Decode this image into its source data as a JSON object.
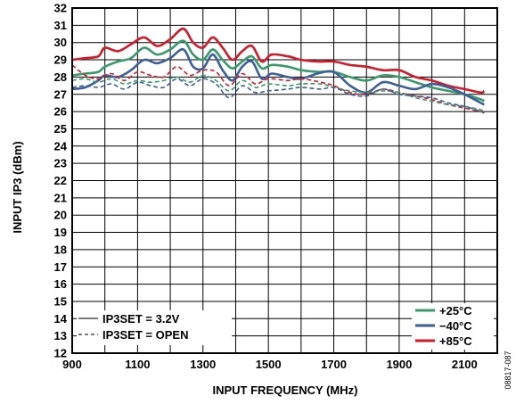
{
  "chart_data": {
    "type": "line",
    "xlabel": "INPUT FREQUENCY (MHz)",
    "ylabel": "INPUT IP3 (dBm)",
    "xlim": [
      900,
      2200
    ],
    "ylim": [
      12,
      32
    ],
    "x_ticks": [
      "900",
      "1100",
      "1300",
      "1500",
      "1700",
      "1900",
      "2100"
    ],
    "y_ticks": [
      "12",
      "13",
      "14",
      "15",
      "16",
      "17",
      "18",
      "19",
      "20",
      "21",
      "22",
      "23",
      "24",
      "25",
      "26",
      "27",
      "28",
      "29",
      "30",
      "31",
      "32"
    ],
    "grid": true,
    "colors": {
      "+25°C": "#3a9a6b",
      "−40°C": "#3d5f9a",
      "+85°C": "#d11a2a",
      "linestyle_legend": "#7a7a7a"
    },
    "legend_temperature": {
      "placement": "bottom-right",
      "entries": [
        {
          "label": "+25°C",
          "color": "#3a9a6b"
        },
        {
          "label": "−40°C",
          "color": "#3d5f9a"
        },
        {
          "label": "+85°C",
          "color": "#d11a2a"
        }
      ]
    },
    "legend_linestyle": {
      "placement": "bottom-left",
      "entries": [
        {
          "label": "IP3SET = 3.2V",
          "style": "solid"
        },
        {
          "label": "IP3SET = OPEN",
          "style": "dashed"
        }
      ]
    },
    "figure_id": "08817-087",
    "series": [
      {
        "temp": "+85°C",
        "style": "solid",
        "color": "#d11a2a",
        "x": [
          900,
          940,
          980,
          1000,
          1040,
          1080,
          1120,
          1160,
          1200,
          1240,
          1270,
          1300,
          1330,
          1360,
          1390,
          1420,
          1450,
          1480,
          1510,
          1560,
          1600,
          1650,
          1700,
          1750,
          1800,
          1850,
          1900,
          1950,
          2000,
          2050,
          2100,
          2150,
          2160
        ],
        "y": [
          29.0,
          29.1,
          29.2,
          29.7,
          29.5,
          29.9,
          30.3,
          29.8,
          30.2,
          30.8,
          30.0,
          29.7,
          30.3,
          29.7,
          29.0,
          29.5,
          29.8,
          28.9,
          29.3,
          29.2,
          29.0,
          28.9,
          28.9,
          28.7,
          28.6,
          28.4,
          28.4,
          28.0,
          27.8,
          27.5,
          27.3,
          27.1,
          27.2
        ]
      },
      {
        "temp": "+25°C",
        "style": "solid",
        "color": "#3a9a6b",
        "x": [
          900,
          940,
          980,
          1000,
          1040,
          1080,
          1120,
          1160,
          1200,
          1240,
          1270,
          1300,
          1330,
          1360,
          1390,
          1420,
          1450,
          1480,
          1510,
          1560,
          1600,
          1650,
          1700,
          1750,
          1800,
          1850,
          1900,
          1950,
          2000,
          2050,
          2100,
          2150,
          2160
        ],
        "y": [
          28.1,
          28.2,
          28.3,
          28.6,
          28.9,
          29.1,
          29.7,
          29.3,
          29.6,
          30.1,
          29.3,
          29.0,
          29.6,
          29.0,
          28.5,
          28.9,
          29.2,
          28.5,
          28.7,
          28.6,
          28.4,
          28.3,
          28.3,
          28.0,
          27.8,
          28.1,
          28.0,
          27.7,
          27.4,
          27.2,
          27.0,
          26.7,
          26.6
        ]
      },
      {
        "temp": "−40°C",
        "style": "solid",
        "color": "#3d5f9a",
        "x": [
          900,
          940,
          980,
          1000,
          1040,
          1080,
          1120,
          1160,
          1200,
          1240,
          1270,
          1300,
          1330,
          1360,
          1390,
          1420,
          1450,
          1480,
          1510,
          1560,
          1600,
          1650,
          1700,
          1750,
          1800,
          1850,
          1900,
          1950,
          2000,
          2050,
          2100,
          2150,
          2160
        ],
        "y": [
          27.3,
          27.4,
          27.8,
          28.1,
          28.0,
          28.4,
          29.0,
          28.8,
          29.1,
          29.6,
          28.6,
          28.5,
          29.3,
          28.4,
          27.8,
          28.6,
          28.9,
          27.9,
          28.2,
          28.0,
          27.9,
          28.2,
          28.3,
          27.5,
          27.1,
          27.7,
          27.5,
          27.3,
          27.6,
          27.4,
          27.0,
          26.5,
          26.4
        ]
      },
      {
        "temp": "+85°C",
        "style": "dashed",
        "color": "#d11a2a",
        "x": [
          900,
          940,
          980,
          1020,
          1060,
          1100,
          1140,
          1180,
          1220,
          1260,
          1300,
          1340,
          1380,
          1420,
          1460,
          1500,
          1560,
          1600,
          1660,
          1700,
          1750,
          1800,
          1850,
          1900,
          1950,
          2000,
          2050,
          2100,
          2150,
          2160
        ],
        "y": [
          28.7,
          28.1,
          27.9,
          28.2,
          27.8,
          28.3,
          28.1,
          28.0,
          28.6,
          28.1,
          28.4,
          28.3,
          27.5,
          28.2,
          27.6,
          27.9,
          27.8,
          27.9,
          27.7,
          27.5,
          27.1,
          27.0,
          27.3,
          27.1,
          26.9,
          26.7,
          26.4,
          26.2,
          26.0,
          25.9
        ]
      },
      {
        "temp": "+25°C",
        "style": "dashed",
        "color": "#3a9a6b",
        "x": [
          900,
          940,
          980,
          1020,
          1060,
          1100,
          1140,
          1180,
          1220,
          1260,
          1300,
          1340,
          1380,
          1420,
          1460,
          1500,
          1560,
          1600,
          1660,
          1700,
          1750,
          1800,
          1850,
          1900,
          1950,
          2000,
          2050,
          2100,
          2150,
          2160
        ],
        "y": [
          27.8,
          27.9,
          27.7,
          27.9,
          27.6,
          27.8,
          27.7,
          27.8,
          28.0,
          27.7,
          28.1,
          27.8,
          27.2,
          27.8,
          27.4,
          27.6,
          27.5,
          27.6,
          27.6,
          27.4,
          27.2,
          27.1,
          27.2,
          27.1,
          26.8,
          26.6,
          26.4,
          26.3,
          26.1,
          26.0
        ]
      },
      {
        "temp": "−40°C",
        "style": "dashed",
        "color": "#3d5f9a",
        "x": [
          900,
          940,
          980,
          1020,
          1060,
          1100,
          1140,
          1180,
          1220,
          1260,
          1300,
          1340,
          1380,
          1420,
          1460,
          1500,
          1560,
          1600,
          1660,
          1700,
          1750,
          1800,
          1850,
          1900,
          1950,
          2000,
          2050,
          2100,
          2150,
          2160
        ],
        "y": [
          27.4,
          27.5,
          27.4,
          27.6,
          27.3,
          27.7,
          27.5,
          27.4,
          27.9,
          27.5,
          27.9,
          27.6,
          26.8,
          27.5,
          27.1,
          27.2,
          27.3,
          27.4,
          27.3,
          27.4,
          27.0,
          26.9,
          27.3,
          27.0,
          26.9,
          26.8,
          26.5,
          26.3,
          26.0,
          25.9
        ]
      }
    ]
  }
}
